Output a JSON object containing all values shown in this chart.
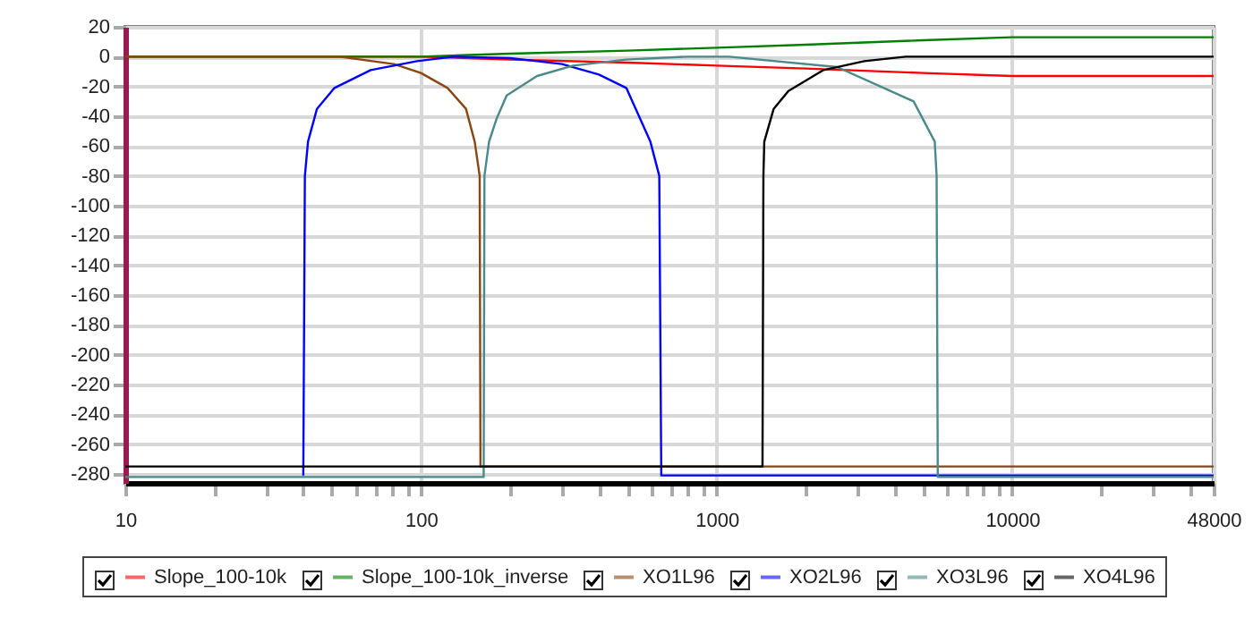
{
  "chart_data": {
    "type": "line",
    "xlim": [
      10,
      48000
    ],
    "ylim": [
      -286,
      20
    ],
    "log": "x",
    "grid": true,
    "legend": "bottom",
    "xticks": [
      10,
      {
        "value": 20,
        "label": null
      },
      {
        "value": 30,
        "label": null
      },
      {
        "value": 40,
        "label": null
      },
      {
        "value": 50,
        "label": null
      },
      {
        "value": 60,
        "label": null
      },
      {
        "value": 70,
        "label": null
      },
      {
        "value": 80,
        "label": null
      },
      {
        "value": 90,
        "label": null
      },
      100,
      {
        "value": 200,
        "label": null
      },
      {
        "value": 300,
        "label": null
      },
      {
        "value": 400,
        "label": null
      },
      {
        "value": 500,
        "label": null
      },
      {
        "value": 600,
        "label": null
      },
      {
        "value": 700,
        "label": null
      },
      {
        "value": 800,
        "label": null
      },
      {
        "value": 900,
        "label": null
      },
      1000,
      {
        "value": 2000,
        "label": null
      },
      {
        "value": 3000,
        "label": null
      },
      {
        "value": 4000,
        "label": null
      },
      {
        "value": 5000,
        "label": null
      },
      {
        "value": 6000,
        "label": null
      },
      {
        "value": 7000,
        "label": null
      },
      {
        "value": 8000,
        "label": null
      },
      {
        "value": 9000,
        "label": null
      },
      10000,
      {
        "value": 20000,
        "label": null
      },
      {
        "value": 30000,
        "label": null
      },
      {
        "value": 40000,
        "label": null
      },
      48000
    ],
    "yticks": [
      -280,
      -260,
      -240,
      -220,
      -200,
      -180,
      -160,
      -140,
      -120,
      -100,
      -80,
      -60,
      -40,
      -20,
      0,
      20
    ],
    "series": [
      {
        "name": "Slope_100-10k",
        "color": "#ff0000",
        "x": [
          10,
          100,
          200,
          500,
          1000,
          2000,
          5000,
          10000,
          48000
        ],
        "values": [
          0,
          0,
          -2,
          -4,
          -6,
          -8,
          -11,
          -13,
          -13
        ]
      },
      {
        "name": "Slope_100-10k_inverse",
        "color": "#008000",
        "x": [
          10,
          100,
          200,
          500,
          1000,
          2000,
          5000,
          10000,
          48000
        ],
        "values": [
          0,
          0,
          2,
          4,
          6,
          8,
          11,
          13,
          13
        ]
      },
      {
        "name": "XO1L96",
        "color": "#8b4513",
        "x": [
          10,
          53,
          81,
          100,
          123,
          142,
          152,
          158,
          159,
          48000
        ],
        "values": [
          0,
          0,
          -5,
          -11,
          -21,
          -35,
          -57,
          -80,
          -275,
          -275
        ]
      },
      {
        "name": "XO2L96",
        "color": "#0000ff",
        "x": [
          40,
          40.5,
          41.5,
          44.5,
          51,
          67.6,
          97,
          129,
          200,
          247,
          300,
          400,
          495,
          597,
          640,
          650,
          48000
        ],
        "values": [
          -281,
          -80,
          -57,
          -35,
          -21,
          -9,
          -3,
          0,
          -1,
          -3,
          -5,
          -12,
          -21,
          -57,
          -80,
          -281,
          -281
        ]
      },
      {
        "name": "XO3L96",
        "color": "#4a8a8a",
        "x": [
          10,
          163,
          164,
          170,
          180,
          195,
          247,
          327,
          495,
          800,
          1100,
          2560,
          4640,
          5470,
          5550,
          5600,
          48000
        ],
        "values": [
          -282,
          -282,
          -80,
          -57,
          -42,
          -26,
          -13,
          -6,
          -2,
          0,
          0,
          -7,
          -30,
          -57,
          -80,
          -282,
          -282
        ]
      },
      {
        "name": "XO4L96",
        "color": "#000000",
        "x": [
          10,
          1430,
          1440,
          1450,
          1560,
          1750,
          2300,
          3160,
          4360,
          48000
        ],
        "values": [
          -275,
          -275,
          -80,
          -57,
          -35,
          -23,
          -9,
          -3,
          0,
          0
        ]
      }
    ]
  }
}
